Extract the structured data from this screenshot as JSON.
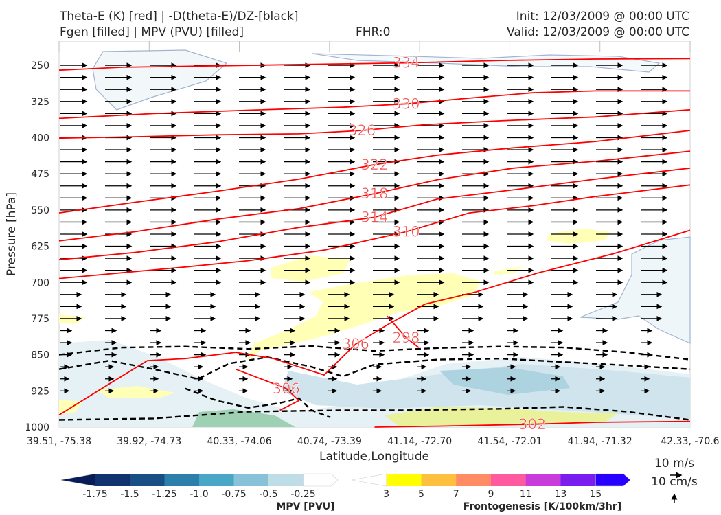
{
  "header": {
    "left_line1": "Theta-E (K) [red] | -D(theta-E)/DZ-[black]",
    "left_line2": "Fgen [filled] | MPV (PVU) [filled]",
    "center": "FHR:0",
    "right_line1": "Init: 12/03/2009 @ 00:00 UTC",
    "right_line2": "Valid: 12/03/2009 @ 00:00 UTC"
  },
  "colors": {
    "theta_e": "#ff0000",
    "dthetae_dz": "#000000",
    "mpv_contour": "#a3b3d2",
    "axis_text": "#262626"
  },
  "chart_data": {
    "type": "cross-section",
    "xlabel": "Latitude,Longitude",
    "ylabel": "Pressure [hPa]",
    "ylim": [
      1000,
      200
    ],
    "x_tick_labels": [
      "39.51, -75.38",
      "39.92, -74.73",
      "40.33, -74.06",
      "40.74, -73.39",
      "41.14, -72.70",
      "41.54, -72.01",
      "41.94, -71.32",
      "42.33, -70.6"
    ],
    "y_ticks": [
      250,
      325,
      400,
      475,
      550,
      625,
      700,
      775,
      850,
      925,
      1000
    ],
    "theta_e_contours": [
      {
        "label": "334",
        "points": [
          [
            0,
            260
          ],
          [
            0.1,
            254
          ],
          [
            0.25,
            251
          ],
          [
            0.4,
            248
          ],
          [
            0.55,
            245
          ],
          [
            0.7,
            240
          ],
          [
            0.85,
            237
          ],
          [
            1.0,
            236
          ]
        ]
      },
      {
        "label": "330",
        "points": [
          [
            0,
            360
          ],
          [
            0.15,
            350
          ],
          [
            0.3,
            343
          ],
          [
            0.45,
            337
          ],
          [
            0.55,
            330
          ],
          [
            0.65,
            318
          ],
          [
            0.75,
            307
          ],
          [
            0.85,
            303
          ],
          [
            1.0,
            303
          ]
        ]
      },
      {
        "label": "326",
        "points": [
          [
            0,
            401
          ],
          [
            0.12,
            398
          ],
          [
            0.25,
            394
          ],
          [
            0.38,
            392
          ],
          [
            0.48,
            385
          ],
          [
            0.58,
            373
          ],
          [
            0.7,
            365
          ],
          [
            0.85,
            357
          ],
          [
            1.0,
            342
          ]
        ]
      },
      {
        "label": "322",
        "points": [
          [
            0,
            556
          ],
          [
            0.12,
            534
          ],
          [
            0.25,
            511
          ],
          [
            0.38,
            486
          ],
          [
            0.5,
            456
          ],
          [
            0.6,
            436
          ],
          [
            0.72,
            421
          ],
          [
            0.85,
            408
          ],
          [
            1.0,
            385
          ]
        ]
      },
      {
        "label": "318",
        "points": [
          [
            0,
            614
          ],
          [
            0.12,
            595
          ],
          [
            0.25,
            569
          ],
          [
            0.38,
            547
          ],
          [
            0.5,
            516
          ],
          [
            0.6,
            487
          ],
          [
            0.72,
            463
          ],
          [
            0.85,
            449
          ],
          [
            1.0,
            428
          ]
        ]
      },
      {
        "label": "314",
        "points": [
          [
            0,
            653
          ],
          [
            0.12,
            638
          ],
          [
            0.25,
            616
          ],
          [
            0.38,
            586
          ],
          [
            0.5,
            565
          ],
          [
            0.6,
            527
          ],
          [
            0.72,
            508
          ],
          [
            0.85,
            486
          ],
          [
            1.0,
            463
          ]
        ]
      },
      {
        "label": "310",
        "points": [
          [
            0,
            692
          ],
          [
            0.1,
            680
          ],
          [
            0.2,
            668
          ],
          [
            0.3,
            655
          ],
          [
            0.42,
            633
          ],
          [
            0.55,
            595
          ],
          [
            0.65,
            556
          ],
          [
            0.75,
            541
          ],
          [
            0.85,
            522
          ],
          [
            1.0,
            498
          ]
        ]
      },
      {
        "label": "306",
        "points": [
          [
            0.0,
            975
          ],
          [
            0.08,
            910
          ],
          [
            0.14,
            862
          ],
          [
            0.2,
            858
          ],
          [
            0.28,
            845
          ],
          [
            0.34,
            858
          ],
          [
            0.38,
            875
          ],
          [
            0.42,
            892
          ],
          [
            0.47,
            828
          ],
          [
            0.52,
            788
          ],
          [
            0.58,
            745
          ],
          [
            0.66,
            720
          ],
          [
            0.76,
            680
          ],
          [
            0.88,
            640
          ],
          [
            1.0,
            592
          ]
        ]
      },
      {
        "label": "302",
        "points": [
          [
            0.5,
            1000
          ],
          [
            0.6,
            998
          ],
          [
            0.75,
            994
          ],
          [
            0.85,
            990
          ],
          [
            1.0,
            988
          ]
        ]
      },
      {
        "label": "298",
        "points": [
          [
            0.52,
            770
          ],
          [
            0.55,
            815
          ],
          [
            0.57,
            835
          ]
        ]
      },
      {
        "label": "306",
        "points": [
          [
            0.28,
            880
          ],
          [
            0.32,
            900
          ],
          [
            0.36,
            920
          ],
          [
            0.38,
            945
          ],
          [
            0.35,
            965
          ]
        ]
      }
    ],
    "dthetae_dz_contours": [
      [
        [
          0,
          850
        ],
        [
          0.1,
          835
        ],
        [
          0.2,
          833
        ],
        [
          0.3,
          838
        ],
        [
          0.4,
          832
        ],
        [
          0.5,
          842
        ],
        [
          0.6,
          836
        ],
        [
          0.7,
          833
        ],
        [
          0.8,
          835
        ],
        [
          0.9,
          845
        ],
        [
          1.0,
          860
        ]
      ],
      [
        [
          0,
          880
        ],
        [
          0.08,
          862
        ],
        [
          0.15,
          880
        ],
        [
          0.22,
          900
        ],
        [
          0.27,
          868
        ],
        [
          0.33,
          855
        ],
        [
          0.4,
          875
        ],
        [
          0.45,
          895
        ],
        [
          0.5,
          870
        ],
        [
          0.6,
          860
        ],
        [
          0.7,
          858
        ],
        [
          0.8,
          865
        ],
        [
          0.9,
          872
        ],
        [
          1.0,
          880
        ]
      ],
      [
        [
          0,
          985
        ],
        [
          0.15,
          982
        ],
        [
          0.3,
          968
        ],
        [
          0.45,
          965
        ],
        [
          0.55,
          965
        ],
        [
          0.7,
          962
        ],
        [
          0.8,
          958
        ],
        [
          0.9,
          968
        ],
        [
          1.0,
          985
        ]
      ],
      [
        [
          0.2,
          920
        ],
        [
          0.25,
          945
        ],
        [
          0.3,
          960
        ],
        [
          0.35,
          950
        ],
        [
          0.38,
          940
        ],
        [
          0.4,
          965
        ],
        [
          0.43,
          980
        ]
      ]
    ],
    "mpv_colorbar": {
      "label": "MPV [PVU]",
      "ticks": [
        "-1.75",
        "-1.5",
        "-1.25",
        "-1.0",
        "-0.75",
        "-0.5",
        "-0.25"
      ],
      "colors": [
        "#081d58",
        "#10326d",
        "#1a4f86",
        "#2c7fa8",
        "#49a6c6",
        "#87c2d9",
        "#bfdde7",
        "#ffffff"
      ]
    },
    "fgen_colorbar": {
      "label": "Frontogenesis [K/100km/3hr]",
      "ticks": [
        "3",
        "5",
        "7",
        "9",
        "11",
        "13",
        "15"
      ],
      "colors": [
        "#ffffff",
        "#ffff00",
        "#ffc040",
        "#ff8c64",
        "#ff5aa0",
        "#c83cdc",
        "#7a1ef0",
        "#2800ff"
      ]
    },
    "wind_key": {
      "horizontal": "10 m/s",
      "vertical": "10 cm/s"
    }
  }
}
